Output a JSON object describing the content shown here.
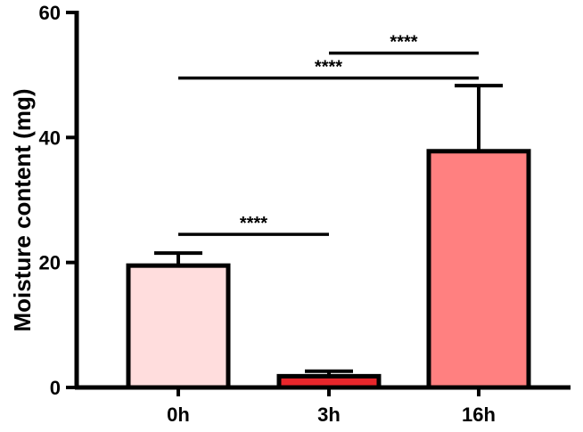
{
  "chart_data": {
    "type": "bar",
    "categories": [
      "0h",
      "3h",
      "16h"
    ],
    "values": [
      19.5,
      1.8,
      37.8
    ],
    "errors": [
      2.0,
      0.8,
      10.5
    ],
    "colors": [
      "#FFDDDD",
      "#E8262B",
      "#FF8080"
    ],
    "ylabel": "Moisture content (mg)",
    "xlabel": "",
    "ylim": [
      0,
      60
    ],
    "yticks": [
      0,
      20,
      40,
      60
    ],
    "significance": [
      {
        "from": 0,
        "to": 1,
        "y": 24.5,
        "label": "****"
      },
      {
        "from": 0,
        "to": 2,
        "y": 49.5,
        "label": "****"
      },
      {
        "from": 1,
        "to": 2,
        "y": 53.5,
        "label": "****"
      }
    ]
  }
}
